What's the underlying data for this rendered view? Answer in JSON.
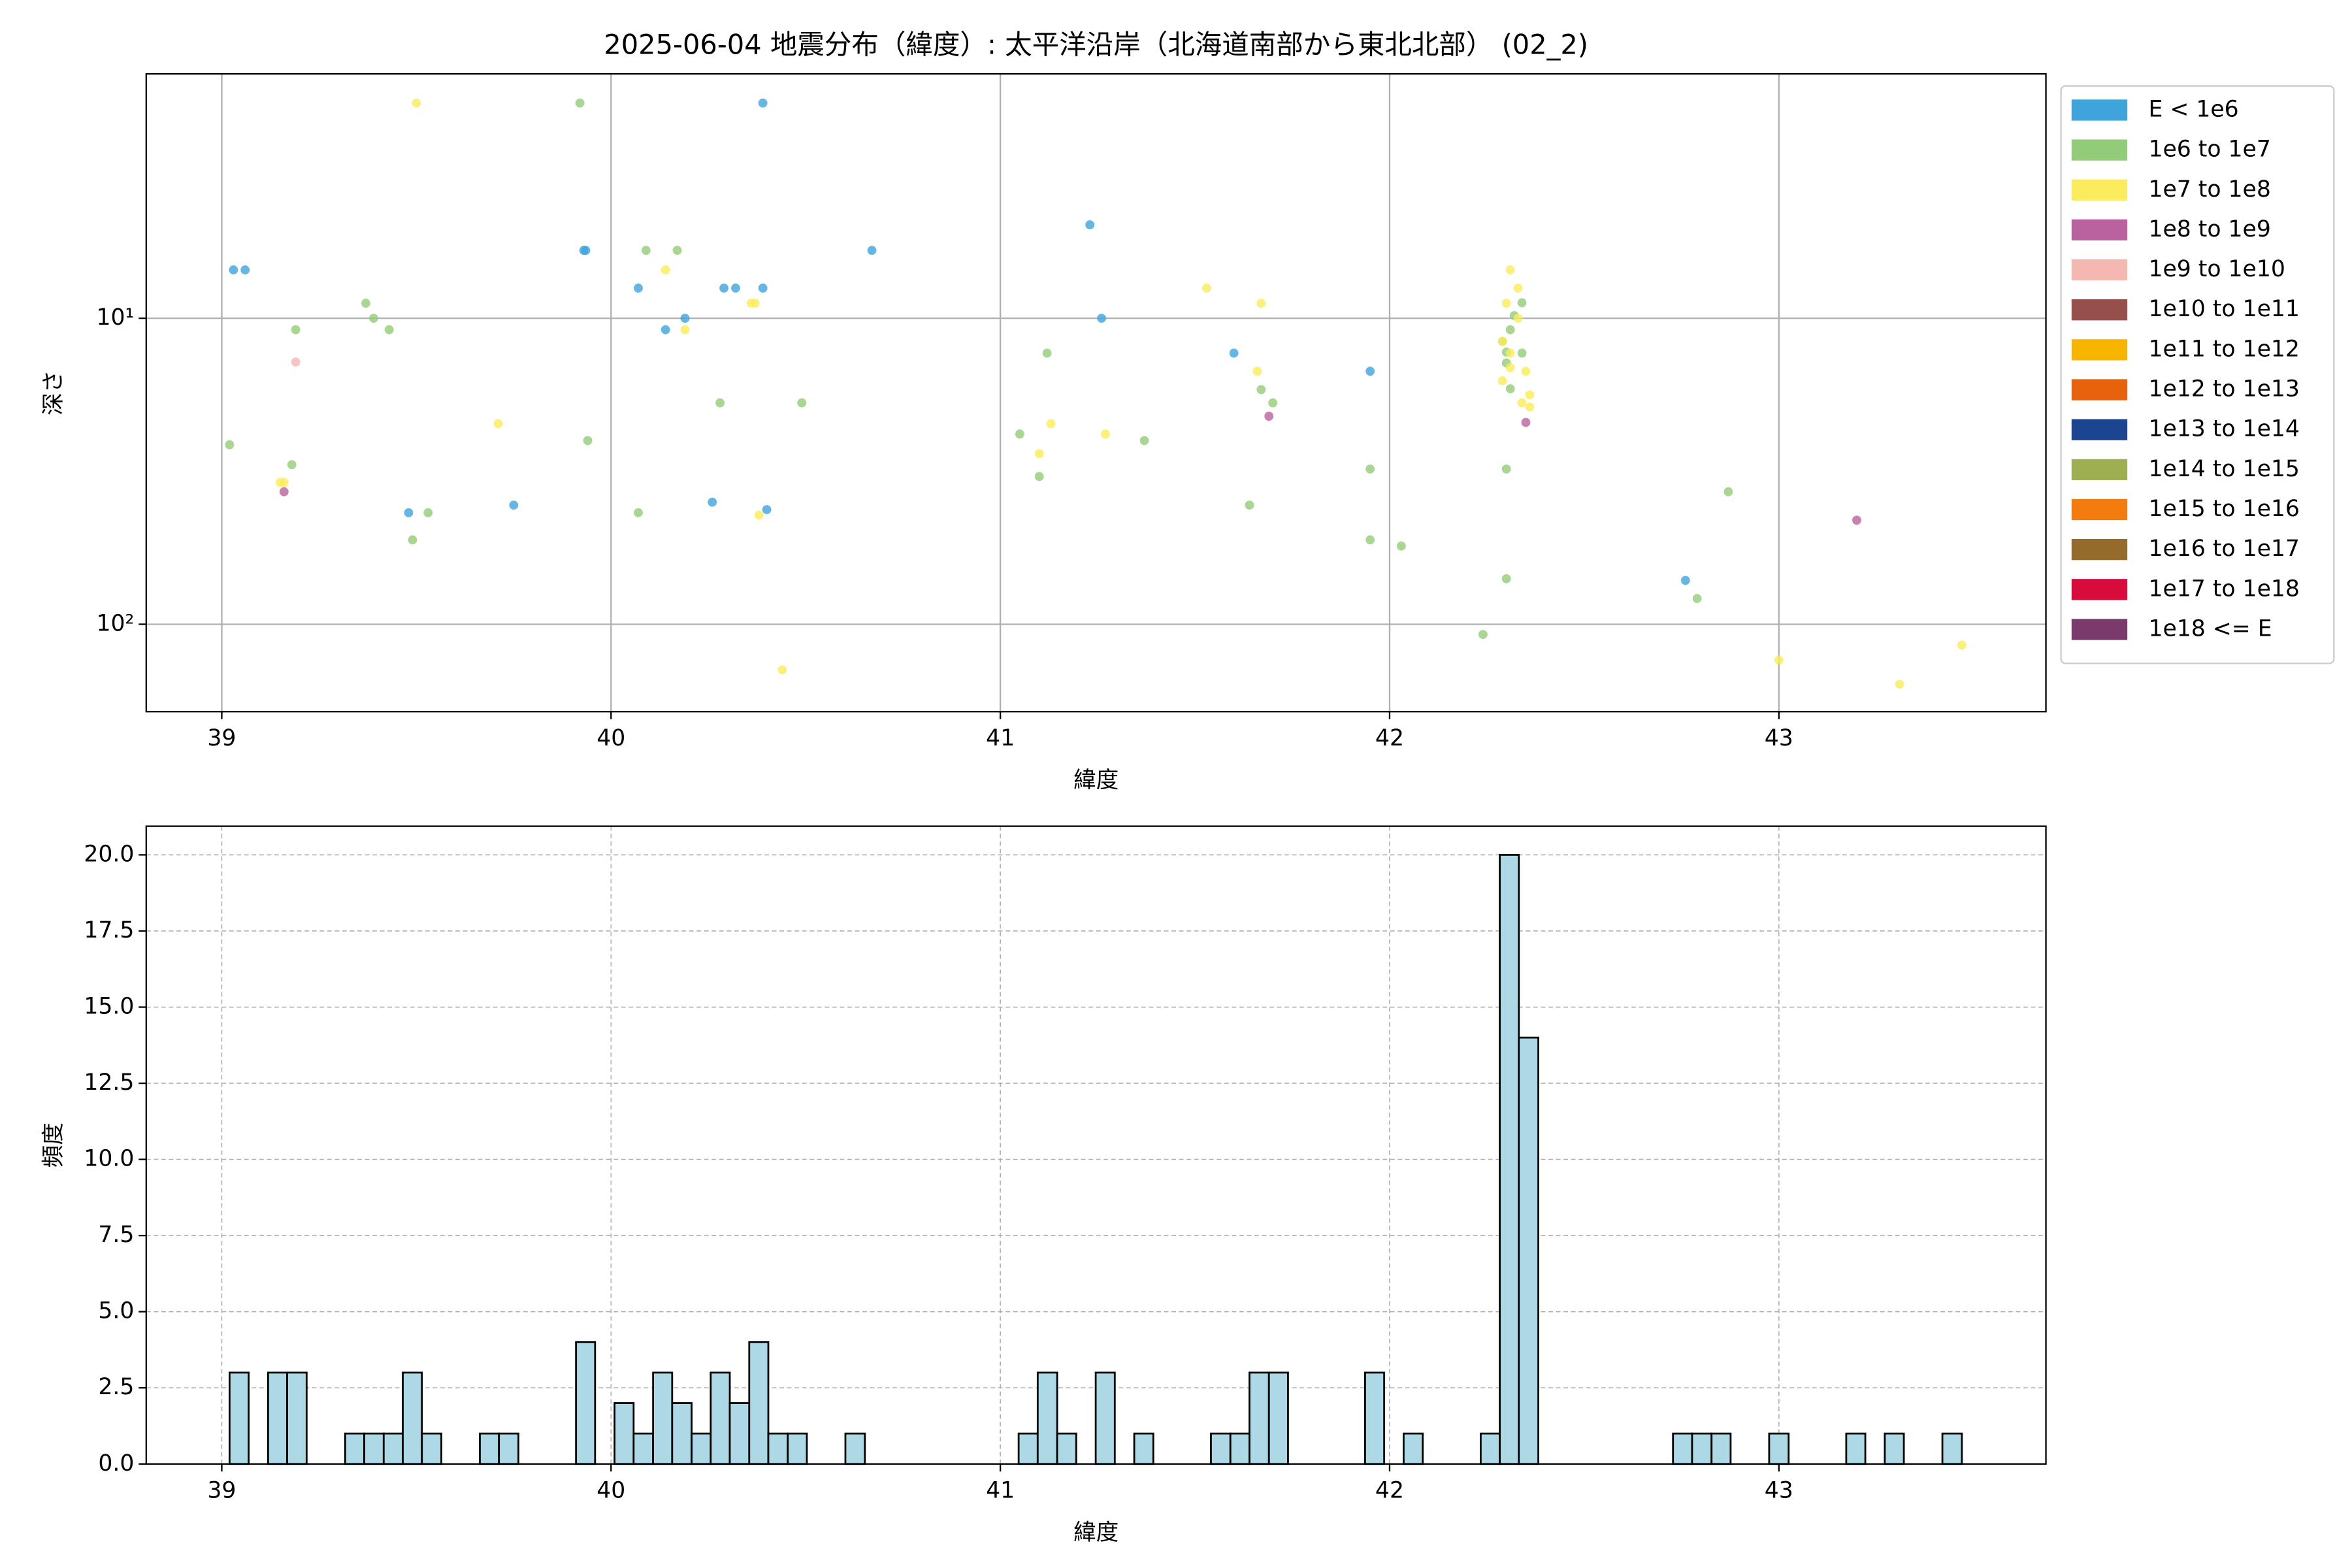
{
  "chart_data": [
    {
      "type": "scatter",
      "title": "2025-06-04 地震分布（緯度）: 太平洋沿岸（北海道南部から東北北部） (02_2)",
      "xlabel": "緯度",
      "ylabel": "深さ",
      "xlim": [
        38.806,
        43.686
      ],
      "xticks": [
        39,
        40,
        41,
        42,
        43
      ],
      "ylim": [
        193,
        1.59
      ],
      "yscale": "log",
      "yticks": [
        {
          "value": 10,
          "label": "10¹"
        },
        {
          "value": 100,
          "label": "10²"
        }
      ],
      "grid": true,
      "grid_linestyle": "solid",
      "legend": "outside-upper-right",
      "series": [
        {
          "name": "E < 1e6",
          "color": "#3fa4dc",
          "x": [
            39.03,
            39.06,
            39.93,
            39.935,
            40.07,
            40.14,
            40.19,
            40.29,
            40.32,
            40.39,
            40.39,
            40.67,
            41.23,
            41.26,
            41.6,
            41.95,
            39.48,
            39.75,
            40.26,
            40.4,
            42.76
          ],
          "values": [
            6.95,
            6.95,
            6.0,
            6.0,
            7.97,
            10.9,
            10,
            7.97,
            7.97,
            7.97,
            1.98,
            6.0,
            4.95,
            10,
            13.0,
            14.9,
            43.2,
            40.8,
            39.9,
            42.2,
            71.9
          ]
        },
        {
          "name": "1e6 to 1e7",
          "color": "#93cc78",
          "x": [
            39.02,
            39.19,
            39.18,
            39.37,
            39.39,
            39.43,
            39.49,
            39.53,
            39.92,
            39.94,
            40.07,
            40.09,
            40.17,
            40.28,
            40.49,
            41.05,
            41.1,
            41.12,
            41.37,
            41.64,
            41.67,
            41.7,
            41.95,
            41.95,
            42.03,
            42.29,
            42.3,
            42.31,
            42.32,
            42.34,
            42.34,
            42.3,
            42.31,
            42.3,
            42.3,
            42.24,
            42.79,
            42.87
          ],
          "values": [
            25.9,
            10.9,
            30.1,
            8.93,
            10,
            10.9,
            53.0,
            43.2,
            1.98,
            25.1,
            43.2,
            6.0,
            6.0,
            18.9,
            18.9,
            23.9,
            32.9,
            13.0,
            25.1,
            40.8,
            17.1,
            18.9,
            31.1,
            53.0,
            55.5,
            11.9,
            14.0,
            10.9,
            9.8,
            8.9,
            13.0,
            12.9,
            17.0,
            31.1,
            71.0,
            108,
            82.4,
            36.9
          ]
        },
        {
          "name": "1e7 to 1e8",
          "color": "#fbec5d",
          "x": [
            39.5,
            39.15,
            39.16,
            39.71,
            40.14,
            40.19,
            40.36,
            40.37,
            40.38,
            40.44,
            41.1,
            41.13,
            41.27,
            41.53,
            41.67,
            41.66,
            42.31,
            42.33,
            42.3,
            42.33,
            42.29,
            42.31,
            42.31,
            42.35,
            42.29,
            42.36,
            42.36,
            42.34,
            43.0,
            43.31,
            43.47
          ],
          "values": [
            1.98,
            34.4,
            34.4,
            22.1,
            6.95,
            10.9,
            8.93,
            8.93,
            44.0,
            141,
            27.7,
            22.1,
            23.9,
            7.97,
            8.93,
            14.9,
            6.95,
            7.97,
            8.93,
            10,
            11.9,
            13.0,
            14.5,
            14.9,
            16.0,
            17.8,
            19.5,
            18.9,
            131,
            157,
            117
          ]
        },
        {
          "name": "1e8 to 1e9",
          "color": "#b9629f",
          "x": [
            39.16,
            41.69,
            42.35,
            43.2
          ],
          "values": [
            36.9,
            20.9,
            21.9,
            45.7
          ]
        },
        {
          "name": "1e9 to 1e10",
          "color": "#f4b8b0",
          "x": [
            39.19
          ],
          "values": [
            13.9
          ]
        },
        {
          "name": "1e10 to 1e11",
          "color": "#974f4b",
          "x": [],
          "values": []
        },
        {
          "name": "1e11 to 1e12",
          "color": "#f7b500",
          "x": [],
          "values": []
        },
        {
          "name": "1e12 to 1e13",
          "color": "#e8620e",
          "x": [],
          "values": []
        },
        {
          "name": "1e13 to 1e14",
          "color": "#1c4591",
          "x": [],
          "values": []
        },
        {
          "name": "1e14 to 1e15",
          "color": "#9eaf52",
          "x": [],
          "values": []
        },
        {
          "name": "1e15 to 1e16",
          "color": "#f47b0d",
          "x": [],
          "values": []
        },
        {
          "name": "1e16 to 1e17",
          "color": "#946b2a",
          "x": [],
          "values": []
        },
        {
          "name": "1e17 to 1e18",
          "color": "#d80b3c",
          "x": [],
          "values": []
        },
        {
          "name": "1e18 <= E",
          "color": "#7b3a6c",
          "x": [],
          "values": []
        }
      ]
    },
    {
      "type": "histogram",
      "xlabel": "緯度",
      "ylabel": "頻度",
      "xlim": [
        38.806,
        43.686
      ],
      "xticks": [
        39,
        40,
        41,
        42,
        43
      ],
      "ylim": [
        0,
        20.94
      ],
      "yticks": [
        {
          "value": 0,
          "label": "0.0"
        },
        {
          "value": 2.5,
          "label": "2.5"
        },
        {
          "value": 5,
          "label": "5.0"
        },
        {
          "value": 7.5,
          "label": "7.5"
        },
        {
          "value": 10,
          "label": "10.0"
        },
        {
          "value": 12.5,
          "label": "12.5"
        },
        {
          "value": 15,
          "label": "15.0"
        },
        {
          "value": 17.5,
          "label": "17.5"
        },
        {
          "value": 20,
          "label": "20.0"
        }
      ],
      "grid": true,
      "grid_linestyle": "dashed",
      "color": "#add8e6",
      "edgecolor": "#000000",
      "bins": [
        39.02,
        39.069,
        39.119,
        39.168,
        39.218,
        39.267,
        39.317,
        39.366,
        39.416,
        39.465,
        39.514,
        39.564,
        39.613,
        39.663,
        39.712,
        39.762,
        39.811,
        39.86,
        39.91,
        39.959,
        40.009,
        40.058,
        40.108,
        40.157,
        40.207,
        40.256,
        40.305,
        40.355,
        40.404,
        40.454,
        40.503,
        40.553,
        40.602,
        40.652,
        40.701,
        40.75,
        40.8,
        40.849,
        40.899,
        40.948,
        40.998,
        41.047,
        41.096,
        41.146,
        41.195,
        41.245,
        41.294,
        41.344,
        41.393,
        41.443,
        41.492,
        41.541,
        41.591,
        41.64,
        41.69,
        41.739,
        41.789,
        41.838,
        41.888,
        41.937,
        41.986,
        42.036,
        42.085,
        42.135,
        42.184,
        42.234,
        42.283,
        42.332,
        42.382,
        42.431,
        42.481,
        42.53,
        42.58,
        42.629,
        42.678,
        42.728,
        42.777,
        42.827,
        42.876,
        42.926,
        42.975,
        43.025,
        43.074,
        43.124,
        43.173,
        43.222,
        43.272,
        43.321,
        43.371,
        43.42,
        43.47
      ],
      "values": [
        3,
        0,
        3,
        3,
        0,
        0,
        1,
        1,
        1,
        3,
        1,
        0,
        0,
        1,
        1,
        0,
        0,
        0,
        4,
        0,
        2,
        1,
        3,
        2,
        1,
        3,
        2,
        4,
        1,
        1,
        0,
        0,
        1,
        0,
        0,
        0,
        0,
        0,
        0,
        0,
        0,
        1,
        3,
        1,
        0,
        3,
        0,
        1,
        0,
        0,
        0,
        1,
        1,
        3,
        3,
        0,
        0,
        0,
        0,
        3,
        0,
        1,
        0,
        0,
        0,
        1,
        20,
        14,
        0,
        0,
        0,
        0,
        0,
        0,
        0,
        1,
        1,
        1,
        0,
        0,
        1,
        0,
        0,
        0,
        1,
        0,
        1,
        0,
        0,
        1
      ]
    }
  ]
}
